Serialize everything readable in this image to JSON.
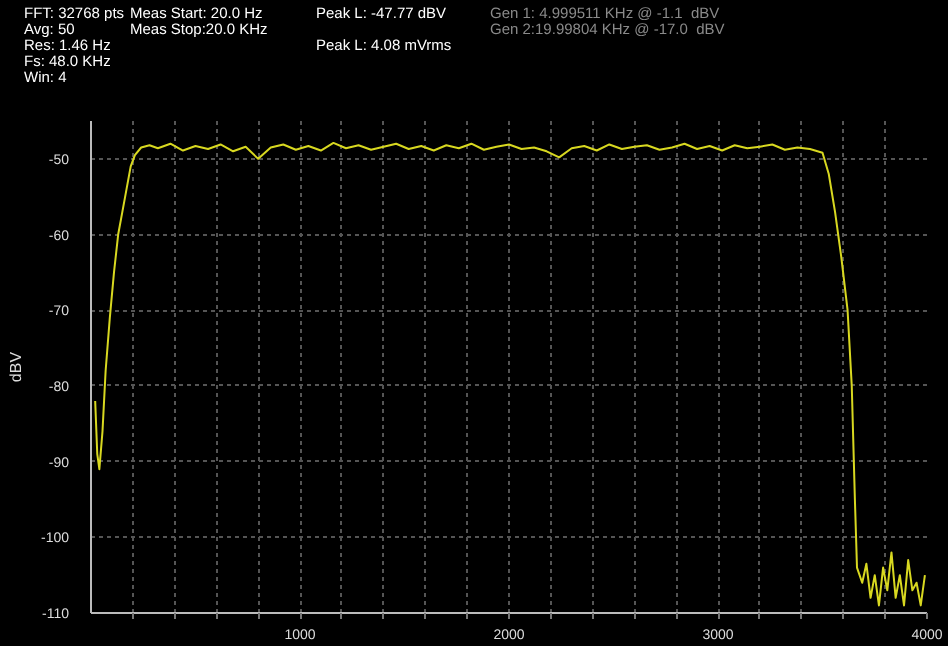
{
  "chart_data": {
    "type": "line",
    "ylabel": "dBV",
    "annotations": [
      "FFT: 32768 pts",
      "Avg: 50",
      "Res: 1.46 Hz",
      "Fs: 48.0 KHz",
      "Win: 4",
      "Meas Start: 20.0 Hz",
      "Meas Stop:20.0 KHz",
      "Peak L: -47.77 dBV",
      "Peak L: 4.08 mVrms",
      "Gen 1: 4.999511 KHz @ -1.1  dBV",
      "Gen 2:19.99804 KHz @ -17.0  dBV"
    ],
    "xlim": [
      0,
      4000
    ],
    "ylim": [
      -110,
      -45
    ],
    "xticks": [
      {
        "value": 200,
        "label": null
      },
      {
        "value": 400,
        "label": null
      },
      {
        "value": 600,
        "label": null
      },
      {
        "value": 800,
        "label": null
      },
      1000,
      {
        "value": 1200,
        "label": null
      },
      {
        "value": 1400,
        "label": null
      },
      {
        "value": 1600,
        "label": null
      },
      {
        "value": 1800,
        "label": null
      },
      2000,
      {
        "value": 2200,
        "label": null
      },
      {
        "value": 2400,
        "label": null
      },
      {
        "value": 2600,
        "label": null
      },
      {
        "value": 2800,
        "label": null
      },
      3000,
      {
        "value": 3200,
        "label": null
      },
      {
        "value": 3400,
        "label": null
      },
      {
        "value": 3600,
        "label": null
      },
      {
        "value": 3800,
        "label": null
      },
      4000
    ],
    "yticks": [
      -110,
      -100,
      -90,
      -80,
      -70,
      -60,
      -50
    ],
    "grid": true,
    "line_style": "solid",
    "series": [
      {
        "color": "#d8d820",
        "x": [
          20,
          30,
          40,
          55,
          70,
          90,
          110,
          130,
          150,
          170,
          190,
          210,
          240,
          280,
          320,
          380,
          440,
          500,
          560,
          620,
          680,
          740,
          800,
          860,
          920,
          980,
          1040,
          1100,
          1160,
          1220,
          1280,
          1340,
          1400,
          1460,
          1520,
          1580,
          1640,
          1700,
          1760,
          1820,
          1880,
          1940,
          2000,
          2060,
          2120,
          2180,
          2240,
          2300,
          2360,
          2420,
          2480,
          2540,
          2600,
          2660,
          2720,
          2780,
          2840,
          2900,
          2960,
          3020,
          3080,
          3140,
          3200,
          3260,
          3320,
          3380,
          3440,
          3500,
          3530,
          3560,
          3590,
          3620,
          3640,
          3655,
          3665,
          3690,
          3710,
          3730,
          3750,
          3770,
          3790,
          3810,
          3830,
          3850,
          3870,
          3890,
          3910,
          3930,
          3950,
          3970,
          3990
        ],
        "values": [
          -82,
          -89,
          -91,
          -86,
          -78,
          -71,
          -65,
          -60,
          -57,
          -54,
          -51,
          -49.5,
          -48.5,
          -48.2,
          -48.6,
          -48.0,
          -48.9,
          -48.3,
          -48.7,
          -48.1,
          -49.0,
          -48.4,
          -50.0,
          -48.5,
          -48.1,
          -48.8,
          -48.3,
          -48.9,
          -47.9,
          -48.6,
          -48.2,
          -48.8,
          -48.4,
          -48.0,
          -48.7,
          -48.3,
          -48.9,
          -48.2,
          -48.6,
          -48.0,
          -48.8,
          -48.4,
          -48.1,
          -48.7,
          -48.5,
          -49.0,
          -49.8,
          -48.6,
          -48.3,
          -48.9,
          -48.1,
          -48.7,
          -48.4,
          -48.2,
          -48.8,
          -48.5,
          -48.0,
          -48.7,
          -48.3,
          -48.9,
          -48.2,
          -48.6,
          -48.4,
          -48.1,
          -48.8,
          -48.5,
          -48.7,
          -49.2,
          -52,
          -57,
          -63,
          -70,
          -80,
          -95,
          -104,
          -106,
          -103.5,
          -108,
          -105,
          -109,
          -104,
          -107,
          -102,
          -108,
          -105,
          -109,
          -103,
          -107,
          -106,
          -109,
          -105
        ]
      }
    ]
  }
}
